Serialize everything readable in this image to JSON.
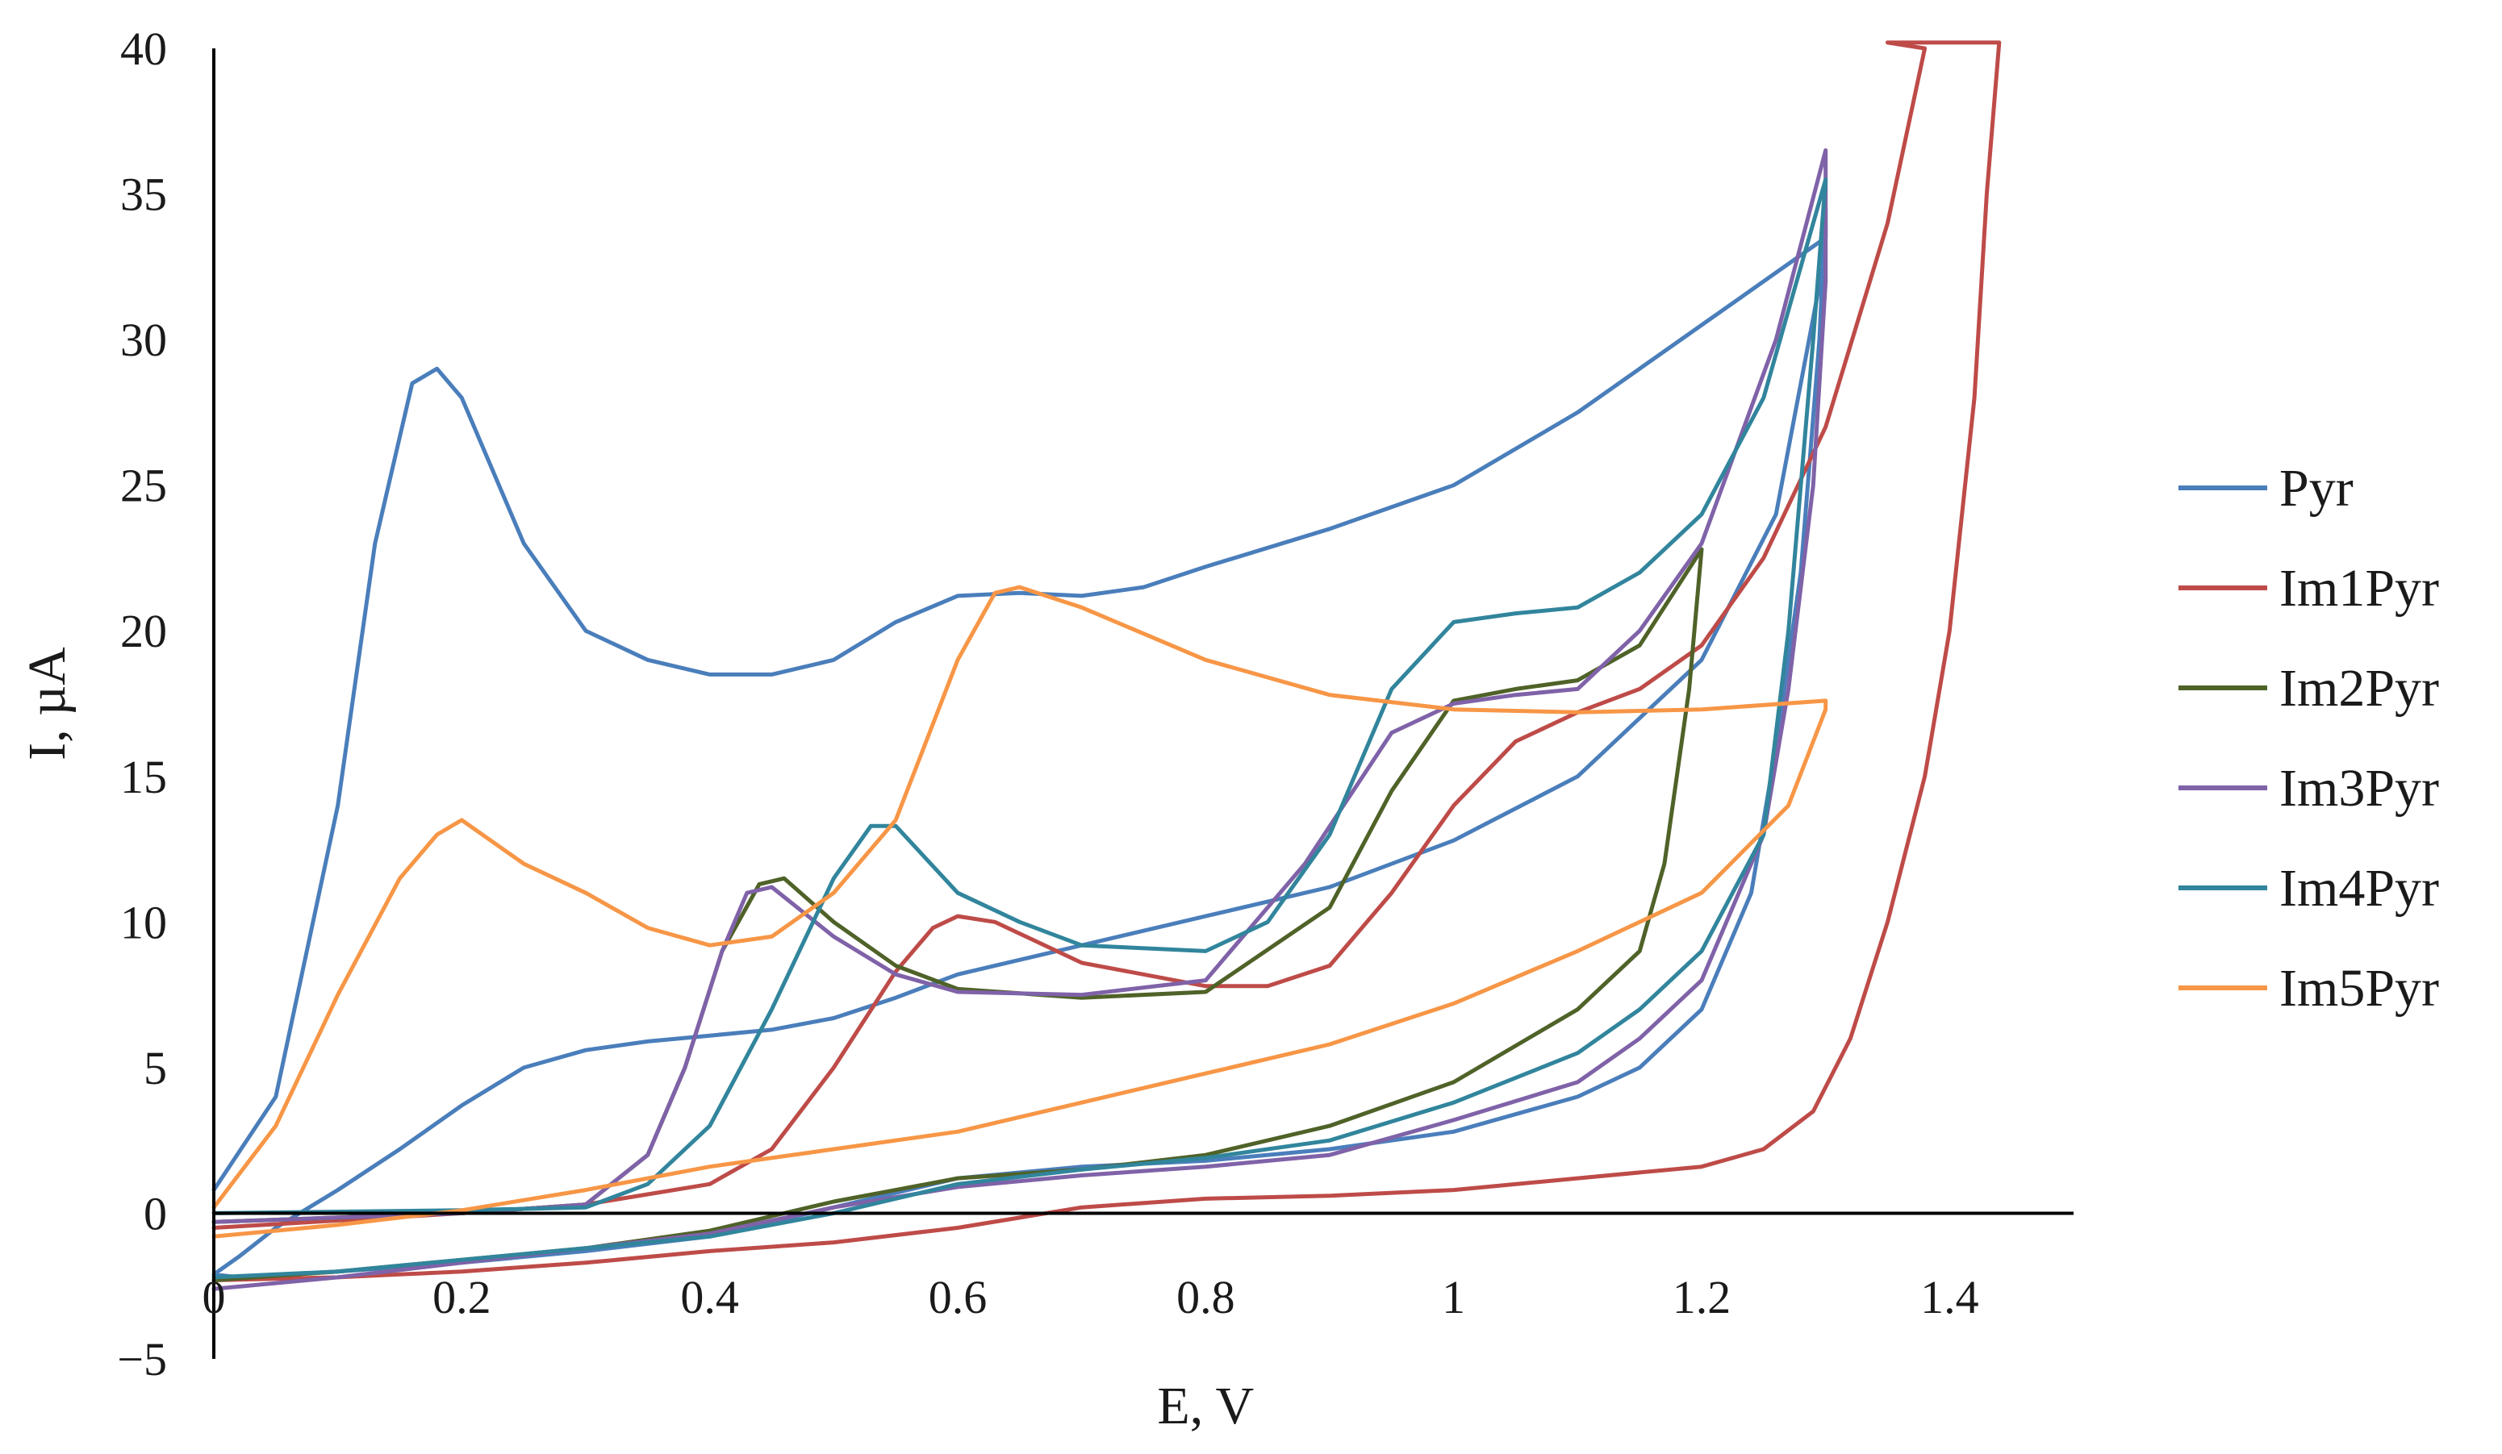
{
  "chart_data": {
    "type": "line",
    "title": "",
    "xlabel": "E, V",
    "ylabel": "I, µA",
    "xlim": [
      0,
      1.5
    ],
    "ylim": [
      -5,
      40
    ],
    "x_ticks": [
      0,
      0.2,
      0.4,
      0.6,
      0.8,
      1,
      1.2,
      1.4
    ],
    "x_tick_labels": [
      "0",
      "0.2",
      "0.4",
      "0.6",
      "0.8",
      "1",
      "1.2",
      "1.4"
    ],
    "y_ticks": [
      -5,
      0,
      5,
      10,
      15,
      20,
      25,
      30,
      35,
      40
    ],
    "y_tick_labels": [
      "−5",
      "0",
      "5",
      "10",
      "15",
      "20",
      "25",
      "30",
      "35",
      "40"
    ],
    "grid": false,
    "legend_position": "right",
    "series": [
      {
        "name": "Pyr",
        "color": "#4a7ebb",
        "points": [
          [
            0,
            0.8
          ],
          [
            0.05,
            4
          ],
          [
            0.1,
            14
          ],
          [
            0.13,
            23
          ],
          [
            0.16,
            28.5
          ],
          [
            0.18,
            29
          ],
          [
            0.2,
            28
          ],
          [
            0.25,
            23
          ],
          [
            0.3,
            20
          ],
          [
            0.35,
            19
          ],
          [
            0.4,
            18.5
          ],
          [
            0.45,
            18.5
          ],
          [
            0.5,
            19
          ],
          [
            0.55,
            20.3
          ],
          [
            0.6,
            21.2
          ],
          [
            0.65,
            21.3
          ],
          [
            0.7,
            21.2
          ],
          [
            0.75,
            21.5
          ],
          [
            0.8,
            22.2
          ],
          [
            0.9,
            23.5
          ],
          [
            1.0,
            25
          ],
          [
            1.1,
            27.5
          ],
          [
            1.2,
            30.5
          ],
          [
            1.3,
            33.5
          ],
          [
            1.3,
            34.5
          ],
          [
            1.295,
            30
          ],
          [
            1.28,
            22
          ],
          [
            1.26,
            16
          ],
          [
            1.24,
            11
          ],
          [
            1.2,
            7
          ],
          [
            1.15,
            5
          ],
          [
            1.1,
            4
          ],
          [
            1.0,
            2.8
          ],
          [
            0.9,
            2.2
          ],
          [
            0.8,
            1.8
          ],
          [
            0.7,
            1.6
          ],
          [
            0.6,
            1.2
          ],
          [
            0.5,
            0.2
          ],
          [
            0.4,
            -0.8
          ],
          [
            0.3,
            -1.3
          ],
          [
            0.2,
            -1.7
          ],
          [
            0.1,
            -2
          ],
          [
            0.02,
            -2.2
          ],
          [
            0,
            -2.1
          ],
          [
            0.02,
            -1.5
          ],
          [
            0.05,
            -0.5
          ],
          [
            0.1,
            0.8
          ],
          [
            0.15,
            2.2
          ],
          [
            0.2,
            3.7
          ],
          [
            0.25,
            5
          ],
          [
            0.3,
            5.6
          ],
          [
            0.35,
            5.9
          ],
          [
            0.4,
            6.1
          ],
          [
            0.45,
            6.3
          ],
          [
            0.5,
            6.7
          ],
          [
            0.55,
            7.4
          ],
          [
            0.6,
            8.2
          ],
          [
            0.7,
            9.2
          ],
          [
            0.8,
            10.2
          ],
          [
            0.9,
            11.2
          ],
          [
            1.0,
            12.8
          ],
          [
            1.1,
            15
          ],
          [
            1.2,
            19
          ],
          [
            1.26,
            24
          ],
          [
            1.3,
            33
          ]
        ]
      },
      {
        "name": "Im1Pyr",
        "color": "#be4b48",
        "points": [
          [
            0,
            -0.5
          ],
          [
            0.2,
            0
          ],
          [
            0.3,
            0.3
          ],
          [
            0.4,
            1
          ],
          [
            0.45,
            2.2
          ],
          [
            0.5,
            5
          ],
          [
            0.55,
            8.3
          ],
          [
            0.58,
            9.8
          ],
          [
            0.6,
            10.2
          ],
          [
            0.63,
            10
          ],
          [
            0.7,
            8.6
          ],
          [
            0.8,
            7.8
          ],
          [
            0.85,
            7.8
          ],
          [
            0.9,
            8.5
          ],
          [
            0.95,
            11
          ],
          [
            1.0,
            14
          ],
          [
            1.05,
            16.2
          ],
          [
            1.1,
            17.2
          ],
          [
            1.15,
            18
          ],
          [
            1.2,
            19.5
          ],
          [
            1.25,
            22.5
          ],
          [
            1.3,
            27
          ],
          [
            1.35,
            34
          ],
          [
            1.38,
            40
          ],
          [
            1.35,
            40.2
          ],
          [
            1.35,
            40.2
          ],
          [
            1.44,
            40.2
          ],
          [
            1.43,
            35
          ],
          [
            1.42,
            28
          ],
          [
            1.4,
            20
          ],
          [
            1.38,
            15
          ],
          [
            1.35,
            10
          ],
          [
            1.32,
            6
          ],
          [
            1.29,
            3.5
          ],
          [
            1.25,
            2.2
          ],
          [
            1.2,
            1.6
          ],
          [
            1.1,
            1.2
          ],
          [
            1.0,
            0.8
          ],
          [
            0.9,
            0.6
          ],
          [
            0.8,
            0.5
          ],
          [
            0.7,
            0.2
          ],
          [
            0.6,
            -0.5
          ],
          [
            0.5,
            -1
          ],
          [
            0.4,
            -1.3
          ],
          [
            0.3,
            -1.7
          ],
          [
            0.2,
            -2
          ],
          [
            0.1,
            -2.2
          ],
          [
            0,
            -2.3
          ]
        ]
      },
      {
        "name": "Im2Pyr",
        "color": "#4f6228",
        "points": [
          [
            0,
            -0.3
          ],
          [
            0.2,
            0
          ],
          [
            0.3,
            0.3
          ],
          [
            0.35,
            2
          ],
          [
            0.38,
            5
          ],
          [
            0.41,
            9
          ],
          [
            0.44,
            11.3
          ],
          [
            0.46,
            11.5
          ],
          [
            0.5,
            10
          ],
          [
            0.55,
            8.5
          ],
          [
            0.6,
            7.7
          ],
          [
            0.7,
            7.4
          ],
          [
            0.8,
            7.6
          ],
          [
            0.9,
            10.5
          ],
          [
            0.95,
            14.5
          ],
          [
            1.0,
            17.6
          ],
          [
            1.05,
            18
          ],
          [
            1.1,
            18.3
          ],
          [
            1.15,
            19.5
          ],
          [
            1.2,
            22.8
          ],
          [
            1.19,
            18
          ],
          [
            1.17,
            12
          ],
          [
            1.15,
            9
          ],
          [
            1.1,
            7
          ],
          [
            1.0,
            4.5
          ],
          [
            0.9,
            3
          ],
          [
            0.8,
            2
          ],
          [
            0.7,
            1.5
          ],
          [
            0.6,
            1.2
          ],
          [
            0.55,
            0.8
          ],
          [
            0.5,
            0.4
          ],
          [
            0.4,
            -0.6
          ],
          [
            0.3,
            -1.2
          ],
          [
            0.2,
            -1.6
          ],
          [
            0.1,
            -2
          ],
          [
            0,
            -2.3
          ]
        ]
      },
      {
        "name": "Im3Pyr",
        "color": "#7f62a8",
        "points": [
          [
            0,
            -0.3
          ],
          [
            0.2,
            0
          ],
          [
            0.3,
            0.3
          ],
          [
            0.35,
            2
          ],
          [
            0.38,
            5
          ],
          [
            0.41,
            9
          ],
          [
            0.43,
            11
          ],
          [
            0.45,
            11.2
          ],
          [
            0.5,
            9.5
          ],
          [
            0.55,
            8.2
          ],
          [
            0.6,
            7.6
          ],
          [
            0.7,
            7.5
          ],
          [
            0.8,
            8
          ],
          [
            0.88,
            12
          ],
          [
            0.95,
            16.5
          ],
          [
            1.0,
            17.5
          ],
          [
            1.05,
            17.8
          ],
          [
            1.1,
            18
          ],
          [
            1.15,
            20
          ],
          [
            1.2,
            23
          ],
          [
            1.26,
            30
          ],
          [
            1.3,
            36.5
          ],
          [
            1.3,
            32
          ],
          [
            1.29,
            25
          ],
          [
            1.27,
            18
          ],
          [
            1.25,
            13
          ],
          [
            1.2,
            8
          ],
          [
            1.15,
            6
          ],
          [
            1.1,
            4.5
          ],
          [
            1.0,
            3.2
          ],
          [
            0.9,
            2
          ],
          [
            0.8,
            1.6
          ],
          [
            0.7,
            1.3
          ],
          [
            0.6,
            0.9
          ],
          [
            0.5,
            0.2
          ],
          [
            0.4,
            -0.7
          ],
          [
            0.3,
            -1.2
          ],
          [
            0.2,
            -1.7
          ],
          [
            0.1,
            -2.2
          ],
          [
            0,
            -2.6
          ]
        ]
      },
      {
        "name": "Im4Pyr",
        "color": "#31859c",
        "points": [
          [
            0,
            0
          ],
          [
            0.2,
            0.1
          ],
          [
            0.3,
            0.2
          ],
          [
            0.35,
            1
          ],
          [
            0.4,
            3
          ],
          [
            0.45,
            7
          ],
          [
            0.5,
            11.5
          ],
          [
            0.53,
            13.3
          ],
          [
            0.55,
            13.3
          ],
          [
            0.6,
            11
          ],
          [
            0.65,
            10
          ],
          [
            0.7,
            9.2
          ],
          [
            0.8,
            9
          ],
          [
            0.85,
            10
          ],
          [
            0.9,
            13
          ],
          [
            0.95,
            18
          ],
          [
            1.0,
            20.3
          ],
          [
            1.05,
            20.6
          ],
          [
            1.1,
            20.8
          ],
          [
            1.15,
            22
          ],
          [
            1.2,
            24
          ],
          [
            1.25,
            28
          ],
          [
            1.3,
            35.5
          ],
          [
            1.29,
            30
          ],
          [
            1.27,
            20
          ],
          [
            1.25,
            13
          ],
          [
            1.2,
            9
          ],
          [
            1.15,
            7
          ],
          [
            1.1,
            5.5
          ],
          [
            1.0,
            3.8
          ],
          [
            0.9,
            2.5
          ],
          [
            0.8,
            1.9
          ],
          [
            0.7,
            1.5
          ],
          [
            0.6,
            1
          ],
          [
            0.5,
            0
          ],
          [
            0.4,
            -0.8
          ],
          [
            0.3,
            -1.2
          ],
          [
            0.2,
            -1.6
          ],
          [
            0.1,
            -2
          ],
          [
            0,
            -2.2
          ]
        ]
      },
      {
        "name": "Im5Pyr",
        "color": "#f79646",
        "points": [
          [
            0,
            0.2
          ],
          [
            0.05,
            3
          ],
          [
            0.1,
            7.5
          ],
          [
            0.15,
            11.5
          ],
          [
            0.18,
            13
          ],
          [
            0.2,
            13.5
          ],
          [
            0.25,
            12
          ],
          [
            0.3,
            11
          ],
          [
            0.35,
            9.8
          ],
          [
            0.4,
            9.2
          ],
          [
            0.45,
            9.5
          ],
          [
            0.5,
            11
          ],
          [
            0.55,
            13.5
          ],
          [
            0.6,
            19
          ],
          [
            0.63,
            21.3
          ],
          [
            0.65,
            21.5
          ],
          [
            0.7,
            20.8
          ],
          [
            0.8,
            19
          ],
          [
            0.9,
            17.8
          ],
          [
            1.0,
            17.3
          ],
          [
            1.1,
            17.2
          ],
          [
            1.2,
            17.3
          ],
          [
            1.3,
            17.6
          ],
          [
            1.3,
            17.3
          ],
          [
            1.27,
            14
          ],
          [
            1.2,
            11
          ],
          [
            1.1,
            9
          ],
          [
            1.0,
            7.2
          ],
          [
            0.9,
            5.8
          ],
          [
            0.8,
            4.8
          ],
          [
            0.7,
            3.8
          ],
          [
            0.6,
            2.8
          ],
          [
            0.5,
            2.2
          ],
          [
            0.4,
            1.6
          ],
          [
            0.3,
            0.8
          ],
          [
            0.2,
            0.1
          ],
          [
            0.1,
            -0.4
          ],
          [
            0,
            -0.8
          ]
        ]
      }
    ]
  }
}
